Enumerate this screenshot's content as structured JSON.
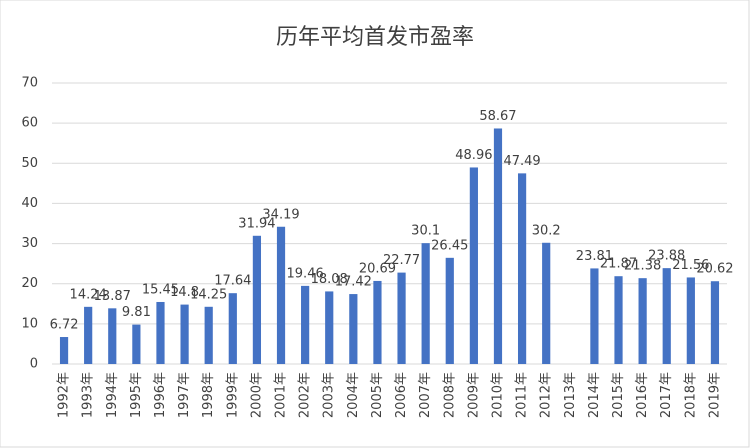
{
  "chart_data": {
    "type": "bar",
    "title": "历年平均首发市盈率",
    "categories": [
      "1992年",
      "1993年",
      "1994年",
      "1995年",
      "1996年",
      "1997年",
      "1998年",
      "1999年",
      "2000年",
      "2001年",
      "2002年",
      "2003年",
      "2004年",
      "2005年",
      "2006年",
      "2007年",
      "2008年",
      "2009年",
      "2010年",
      "2011年",
      "2012年",
      "2013年",
      "2014年",
      "2015年",
      "2016年",
      "2017年",
      "2018年",
      "2019年"
    ],
    "values": [
      6.72,
      14.24,
      13.87,
      9.81,
      15.45,
      14.8,
      14.25,
      17.64,
      31.94,
      34.19,
      19.46,
      18.08,
      17.42,
      20.69,
      22.77,
      30.1,
      26.45,
      48.96,
      58.67,
      47.49,
      30.2,
      null,
      23.81,
      21.87,
      21.38,
      23.88,
      21.56,
      20.62
    ],
    "color": "#4472c4",
    "ylim": [
      0,
      70
    ],
    "yticks": [
      0,
      10,
      20,
      30,
      40,
      50,
      60,
      70
    ],
    "grid": true
  }
}
